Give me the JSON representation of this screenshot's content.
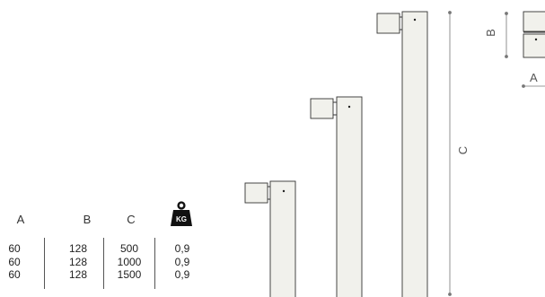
{
  "table": {
    "headers": [
      "A",
      "B",
      "C"
    ],
    "weight_icon_text": "KG",
    "rows": [
      {
        "a": "60",
        "b": "128",
        "c": "500",
        "kg": "0,9"
      },
      {
        "a": "60",
        "b": "128",
        "c": "1000",
        "kg": "0,9"
      },
      {
        "a": "60",
        "b": "128",
        "c": "1500",
        "kg": "0,9"
      }
    ]
  },
  "dimensions": {
    "height_label": "C",
    "top_label": "B",
    "bottom_label": "A"
  },
  "colors": {
    "line": "#333333",
    "fill": "#f1f1ec"
  }
}
